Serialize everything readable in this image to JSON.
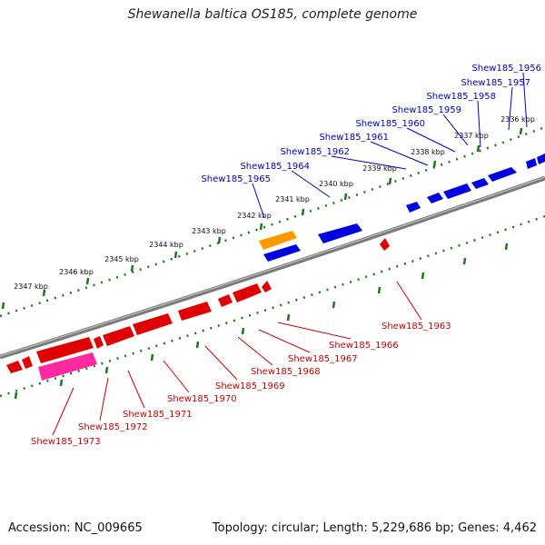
{
  "title": "Shewanella baltica OS185, complete genome",
  "footer": {
    "accession": "Accession: NC_009665",
    "summary": "Topology: circular; Length: 5,229,686 bp; Genes: 4,462"
  },
  "colors": {
    "forward_gene": "#0000e0",
    "reverse_gene": "#e00000",
    "reverse_pseudo": "#ff2aa0",
    "highlight_gene": "#ff9900",
    "backbone": "#808080",
    "tick": "#1a7a1a",
    "top_label": "#0000cc",
    "bottom_label": "#cc0000"
  },
  "scale_ticks": [
    "2336 kbp",
    "2337 kbp",
    "2338 kbp",
    "2339 kbp",
    "2340 kbp",
    "2341 kbp",
    "2342 kbp",
    "2343 kbp",
    "2344 kbp",
    "2345 kbp",
    "2346 kbp",
    "2347 kbp"
  ],
  "top_labels": [
    "Shew185_1956",
    "Shew185_1957",
    "Shew185_1958",
    "Shew185_1959",
    "Shew185_1960",
    "Shew185_1961",
    "Shew185_1962",
    "Shew185_1964",
    "Shew185_1965"
  ],
  "bottom_labels": [
    "Shew185_1963",
    "Shew185_1966",
    "Shew185_1967",
    "Shew185_1968",
    "Shew185_1969",
    "Shew185_1970",
    "Shew185_1971",
    "Shew185_1972",
    "Shew185_1973"
  ]
}
